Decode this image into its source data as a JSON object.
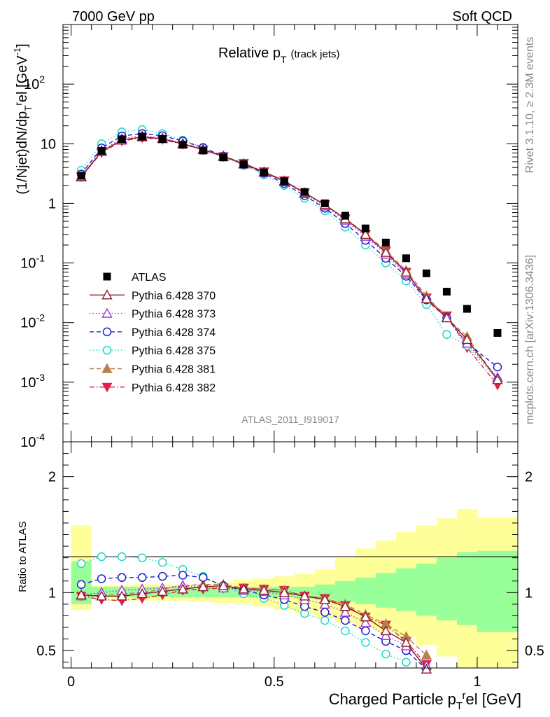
{
  "header": {
    "left": "7000 GeV pp",
    "right": "Soft QCD"
  },
  "side_labels": {
    "rivet": "Rivet 3.1.10, ≥ 2.3M events",
    "mcplots": "mcplots.cern.ch [arXiv:1306.3436]"
  },
  "chart_data": [
    {
      "type": "scatter",
      "title": "Relative p_T (track jets)",
      "title_main": "Relative p",
      "title_sub": "T",
      "title_small": "(track jets)",
      "ylabel": "(1/Njet)dN/dp_T^rel [GeV^-1]",
      "ylabel_a": "(1/Njet)dN/dp",
      "ylabel_b": "T",
      "ylabel_c": "r",
      "ylabel_d": "el [GeV",
      "ylabel_e": "-1",
      "ylabel_f": "]",
      "yscale": "log",
      "xlim": [
        -0.02,
        1.1
      ],
      "ylim": [
        0.0001,
        1000
      ],
      "y_ticks": [
        {
          "label": "10",
          "exp": "-4",
          "value": 0.0001
        },
        {
          "label": "10",
          "exp": "-3",
          "value": 0.001
        },
        {
          "label": "10",
          "exp": "-2",
          "value": 0.01
        },
        {
          "label": "10",
          "exp": "-1",
          "value": 0.1
        },
        {
          "label": "1",
          "exp": "",
          "value": 1
        },
        {
          "label": "10",
          "exp": "",
          "value": 10
        },
        {
          "label": "10",
          "exp": "2",
          "value": 100
        }
      ],
      "watermark": "ATLAS_2011_I919017",
      "legend_position": "bottom-left",
      "x": [
        0.025,
        0.075,
        0.125,
        0.175,
        0.225,
        0.275,
        0.325,
        0.375,
        0.425,
        0.475,
        0.525,
        0.575,
        0.625,
        0.675,
        0.725,
        0.775,
        0.825,
        0.875,
        0.925,
        0.975,
        1.05
      ],
      "series": [
        {
          "name": "ATLAS",
          "color": "#000000",
          "marker": "square",
          "line": "none",
          "values": [
            2.9,
            7.6,
            11.9,
            13.2,
            12.0,
            9.6,
            7.7,
            5.9,
            4.5,
            3.3,
            2.35,
            1.55,
            1.0,
            0.62,
            0.38,
            0.22,
            0.12,
            0.067,
            0.033,
            0.017,
            0.0067
          ]
        },
        {
          "name": "Pythia 6.428 370",
          "color": "#8b1a2b",
          "marker": "triangle-open",
          "line": "solid",
          "values": [
            2.8,
            7.4,
            11.5,
            13.0,
            12.1,
            9.9,
            8.0,
            6.1,
            4.6,
            3.35,
            2.35,
            1.5,
            0.95,
            0.55,
            0.3,
            0.15,
            0.07,
            0.025,
            0.012,
            0.0052,
            0.0011
          ]
        },
        {
          "name": "Pythia 6.428 373",
          "color": "#9b30e0",
          "marker": "triangle-open",
          "line": "dotted",
          "values": [
            2.85,
            7.7,
            12.2,
            13.6,
            12.4,
            10.2,
            8.1,
            6.1,
            4.55,
            3.3,
            2.3,
            1.45,
            0.9,
            0.52,
            0.28,
            0.14,
            0.065,
            0.025,
            0.012,
            0.0045,
            0.0012
          ]
        },
        {
          "name": "Pythia 6.428 374",
          "color": "#2020c8",
          "marker": "circle-open",
          "line": "dashed",
          "values": [
            3.1,
            8.5,
            13.5,
            14.8,
            13.6,
            11.1,
            8.6,
            6.2,
            4.5,
            3.2,
            2.15,
            1.35,
            0.83,
            0.46,
            0.24,
            0.12,
            0.06,
            0.024,
            0.012,
            0.0045,
            0.0018
          ]
        },
        {
          "name": "Pythia 6.428 375",
          "color": "#20d8c8",
          "marker": "circle-open",
          "line": "dotted",
          "values": [
            3.6,
            10.0,
            15.8,
            17.3,
            14.8,
            11.5,
            8.7,
            6.1,
            4.3,
            3.0,
            2.0,
            1.22,
            0.75,
            0.4,
            0.2,
            0.1,
            0.05,
            0.02,
            0.0063,
            0.0041,
            0.0011
          ]
        },
        {
          "name": "Pythia 6.428 381",
          "color": "#b8804a",
          "marker": "triangle-filled",
          "line": "dashed",
          "values": [
            2.75,
            7.4,
            11.6,
            13.1,
            12.3,
            10.2,
            8.1,
            6.3,
            4.7,
            3.4,
            2.4,
            1.5,
            0.95,
            0.56,
            0.31,
            0.16,
            0.075,
            0.028,
            0.012,
            0.0058,
            0.0011
          ]
        },
        {
          "name": "Pythia 6.428 382",
          "color": "#e0204a",
          "marker": "triangle-down-filled",
          "line": "dashdot",
          "values": [
            2.8,
            7.1,
            11.1,
            12.6,
            11.8,
            9.8,
            7.9,
            6.1,
            4.7,
            3.4,
            2.4,
            1.5,
            0.95,
            0.55,
            0.3,
            0.16,
            0.07,
            0.026,
            0.013,
            0.0038,
            0.0009
          ]
        }
      ]
    },
    {
      "type": "scatter",
      "title": "",
      "ylabel": "Ratio to ATLAS",
      "xlabel": "Charged Particle p_T^rel [GeV]",
      "xlabel_a": "Charged Particle p",
      "xlabel_b": "T",
      "xlabel_c": "r",
      "xlabel_d": "el [GeV]",
      "xlim": [
        -0.02,
        1.1
      ],
      "ylim": [
        0.35,
        2.3
      ],
      "x_ticks": [
        {
          "label": "0",
          "value": 0
        },
        {
          "label": "0.5",
          "value": 0.5
        },
        {
          "label": "1",
          "value": 1
        }
      ],
      "y_ticks": [
        {
          "label": "0.5",
          "value": 0.5
        },
        {
          "label": "1",
          "value": 1
        },
        {
          "label": "2",
          "value": 2
        }
      ],
      "bands": {
        "edges": [
          0,
          0.05,
          0.1,
          0.15,
          0.2,
          0.25,
          0.3,
          0.35,
          0.4,
          0.45,
          0.5,
          0.55,
          0.6,
          0.65,
          0.7,
          0.75,
          0.8,
          0.85,
          0.9,
          0.95,
          1.0,
          1.1
        ],
        "green_lower": [
          0.9,
          0.96,
          0.96,
          0.96,
          0.96,
          0.96,
          0.96,
          0.96,
          0.96,
          0.96,
          0.96,
          0.95,
          0.94,
          0.92,
          0.9,
          0.87,
          0.84,
          0.8,
          0.76,
          0.72,
          0.66
        ],
        "green_upper": [
          1.27,
          1.05,
          1.05,
          1.05,
          1.05,
          1.05,
          1.05,
          1.05,
          1.05,
          1.05,
          1.05,
          1.05,
          1.07,
          1.1,
          1.13,
          1.17,
          1.21,
          1.25,
          1.3,
          1.35,
          1.36
        ],
        "yellow_lower": [
          0.85,
          0.94,
          0.94,
          0.93,
          0.93,
          0.93,
          0.92,
          0.91,
          0.9,
          0.88,
          0.85,
          0.82,
          0.78,
          0.74,
          0.7,
          0.66,
          0.62,
          0.55,
          0.45,
          0.35,
          0.35
        ],
        "yellow_upper": [
          1.58,
          1.06,
          1.06,
          1.07,
          1.07,
          1.07,
          1.07,
          1.09,
          1.11,
          1.12,
          1.14,
          1.16,
          1.2,
          1.3,
          1.38,
          1.45,
          1.52,
          1.58,
          1.64,
          1.72,
          1.65
        ]
      },
      "series": [
        {
          "name": "Pythia 6.428 370",
          "color": "#8b1a2b",
          "marker": "triangle-open",
          "line": "solid",
          "values": [
            0.98,
            0.97,
            0.97,
            0.99,
            1.01,
            1.03,
            1.05,
            1.06,
            1.03,
            1.02,
            1.0,
            0.97,
            0.94,
            0.88,
            0.79,
            0.67,
            0.57,
            0.34,
            null,
            null,
            null
          ]
        },
        {
          "name": "Pythia 6.428 373",
          "color": "#9b30e0",
          "marker": "triangle-open",
          "line": "dotted",
          "values": [
            0.98,
            1.0,
            1.02,
            1.03,
            1.04,
            1.06,
            1.05,
            1.04,
            1.02,
            1.01,
            0.98,
            0.94,
            0.9,
            0.83,
            0.74,
            0.63,
            0.54,
            0.37,
            null,
            null,
            null
          ]
        },
        {
          "name": "Pythia 6.428 374",
          "color": "#2020c8",
          "marker": "circle-open",
          "line": "dashed",
          "values": [
            1.07,
            1.12,
            1.13,
            1.13,
            1.14,
            1.15,
            1.13,
            1.06,
            1.02,
            0.98,
            0.94,
            0.88,
            0.83,
            0.76,
            0.67,
            0.58,
            0.5,
            0.34,
            null,
            null,
            null
          ]
        },
        {
          "name": "Pythia 6.428 375",
          "color": "#20d8c8",
          "marker": "circle-open",
          "line": "dotted",
          "values": [
            1.25,
            1.31,
            1.31,
            1.3,
            1.26,
            1.2,
            1.14,
            1.05,
            0.99,
            0.95,
            0.89,
            0.82,
            0.76,
            0.67,
            0.57,
            0.47,
            0.4,
            null,
            null,
            null,
            null
          ]
        },
        {
          "name": "Pythia 6.428 381",
          "color": "#b8804a",
          "marker": "triangle-filled",
          "line": "dashed",
          "values": [
            0.97,
            0.98,
            0.99,
            1.0,
            1.03,
            1.06,
            1.07,
            1.07,
            1.04,
            1.03,
            1.02,
            0.97,
            0.95,
            0.9,
            0.81,
            0.73,
            0.62,
            0.46,
            null,
            null,
            null
          ]
        },
        {
          "name": "Pythia 6.428 382",
          "color": "#e0204a",
          "marker": "triangle-down-filled",
          "line": "dashdot",
          "values": [
            0.97,
            0.94,
            0.93,
            0.95,
            0.98,
            1.02,
            1.03,
            1.04,
            1.04,
            1.03,
            1.02,
            0.97,
            0.95,
            0.89,
            0.79,
            0.72,
            0.58,
            0.38,
            null,
            null,
            null
          ]
        }
      ]
    }
  ]
}
